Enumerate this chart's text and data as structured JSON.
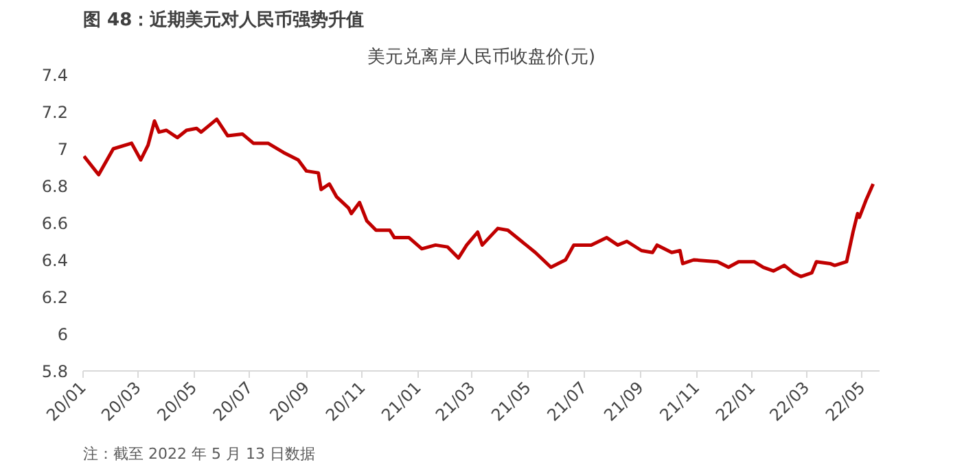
{
  "chart_data": {
    "type": "line",
    "title": "图 48：近期美元对人民币强势升值",
    "subtitle": "美元兑离岸人民币收盘价(元)",
    "annotations": [
      "注：截至 2022 年 5 月 13 日数据"
    ],
    "x": [
      "2020-01-02",
      "2020-01-18",
      "2020-02-03",
      "2020-02-23",
      "2020-03-04",
      "2020-03-12",
      "2020-03-19",
      "2020-03-24",
      "2020-04-01",
      "2020-04-13",
      "2020-04-23",
      "2020-05-04",
      "2020-05-09",
      "2020-05-26",
      "2020-06-07",
      "2020-06-23",
      "2020-07-05",
      "2020-07-21",
      "2020-08-07",
      "2020-08-23",
      "2020-09-01",
      "2020-09-14",
      "2020-09-17",
      "2020-09-26",
      "2020-10-04",
      "2020-10-17",
      "2020-10-20",
      "2020-10-29",
      "2020-11-06",
      "2020-11-16",
      "2020-12-01",
      "2020-12-06",
      "2020-12-22",
      "2021-01-05",
      "2021-01-20",
      "2021-02-02",
      "2021-02-14",
      "2021-02-23",
      "2021-03-07",
      "2021-03-12",
      "2021-03-29",
      "2021-04-09",
      "2021-04-29",
      "2021-05-09",
      "2021-05-26",
      "2021-06-11",
      "2021-06-20",
      "2021-07-09",
      "2021-07-26",
      "2021-08-07",
      "2021-08-17",
      "2021-09-02",
      "2021-09-14",
      "2021-09-19",
      "2021-10-05",
      "2021-10-14",
      "2021-10-17",
      "2021-10-29",
      "2021-11-24",
      "2021-12-06",
      "2021-12-17",
      "2022-01-03",
      "2022-01-13",
      "2022-01-24",
      "2022-02-05",
      "2022-02-15",
      "2022-02-23",
      "2022-03-07",
      "2022-03-12",
      "2022-03-27",
      "2022-04-01",
      "2022-04-14",
      "2022-04-21",
      "2022-04-26",
      "2022-04-28",
      "2022-05-05",
      "2022-05-13"
    ],
    "series": [
      {
        "color": "#c00000",
        "values": [
          6.96,
          6.86,
          7.0,
          7.03,
          6.94,
          7.02,
          7.15,
          7.09,
          7.1,
          7.06,
          7.1,
          7.11,
          7.09,
          7.16,
          7.07,
          7.08,
          7.03,
          7.03,
          6.98,
          6.94,
          6.88,
          6.87,
          6.78,
          6.81,
          6.74,
          6.68,
          6.65,
          6.71,
          6.61,
          6.56,
          6.56,
          6.52,
          6.52,
          6.46,
          6.48,
          6.47,
          6.41,
          6.48,
          6.55,
          6.48,
          6.57,
          6.56,
          6.48,
          6.44,
          6.36,
          6.4,
          6.48,
          6.48,
          6.52,
          6.48,
          6.5,
          6.45,
          6.44,
          6.48,
          6.44,
          6.45,
          6.38,
          6.4,
          6.39,
          6.36,
          6.39,
          6.39,
          6.36,
          6.34,
          6.37,
          6.33,
          6.31,
          6.33,
          6.39,
          6.38,
          6.37,
          6.39,
          6.55,
          6.65,
          6.63,
          6.72,
          6.81
        ]
      }
    ],
    "xlim": [
      "2020-01-01",
      "2022-05-20"
    ],
    "xticks": [
      {
        "value": "2020-01-01",
        "label": "20/01"
      },
      {
        "value": "2020-03-01",
        "label": "20/03"
      },
      {
        "value": "2020-05-01",
        "label": "20/05"
      },
      {
        "value": "2020-07-01",
        "label": "20/07"
      },
      {
        "value": "2020-09-01",
        "label": "20/09"
      },
      {
        "value": "2020-11-01",
        "label": "20/11"
      },
      {
        "value": "2021-01-01",
        "label": "21/01"
      },
      {
        "value": "2021-03-01",
        "label": "21/03"
      },
      {
        "value": "2021-05-01",
        "label": "21/05"
      },
      {
        "value": "2021-07-01",
        "label": "21/07"
      },
      {
        "value": "2021-09-01",
        "label": "21/09"
      },
      {
        "value": "2021-11-01",
        "label": "21/11"
      },
      {
        "value": "2022-01-01",
        "label": "22/01"
      },
      {
        "value": "2022-03-01",
        "label": "22/03"
      },
      {
        "value": "2022-05-01",
        "label": "22/05"
      }
    ],
    "ylim": [
      5.8,
      7.4
    ],
    "yticks": [
      5.8,
      6,
      6.2,
      6.4,
      6.6,
      6.8,
      7,
      7.2,
      7.4
    ],
    "grid": false
  }
}
